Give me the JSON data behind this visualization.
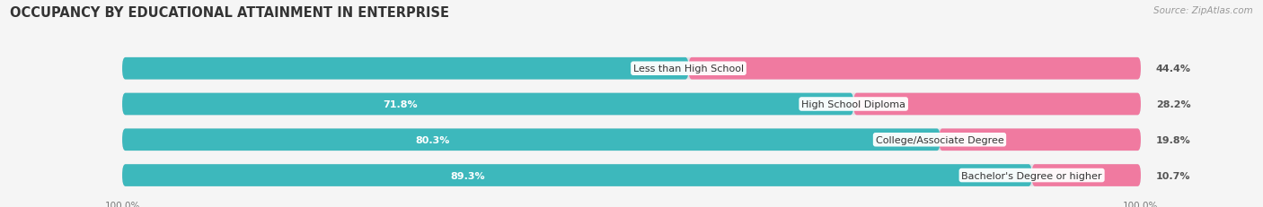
{
  "title": "OCCUPANCY BY EDUCATIONAL ATTAINMENT IN ENTERPRISE",
  "source": "Source: ZipAtlas.com",
  "categories": [
    "Less than High School",
    "High School Diploma",
    "College/Associate Degree",
    "Bachelor's Degree or higher"
  ],
  "owner_pct": [
    55.6,
    71.8,
    80.3,
    89.3
  ],
  "renter_pct": [
    44.4,
    28.2,
    19.8,
    10.7
  ],
  "owner_color": "#3db8bc",
  "renter_color": "#f07aa0",
  "bar_bg_color": "#e2e2e6",
  "background_color": "#f5f5f5",
  "row_bg_color": "#ebebee",
  "title_fontsize": 10.5,
  "source_fontsize": 7.5,
  "label_fontsize": 8.0,
  "cat_fontsize": 8.0,
  "axis_label_fontsize": 7.5,
  "legend_fontsize": 8.0,
  "bar_height": 0.62,
  "owner_label_outside_threshold": 60.0
}
